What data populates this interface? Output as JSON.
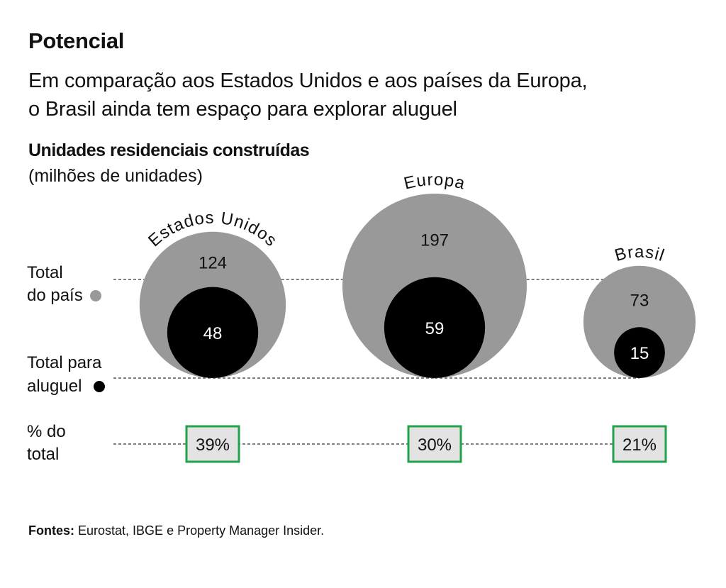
{
  "header": {
    "kicker": "Potencial",
    "headline_line1": "Em comparação aos Estados Unidos e aos países da Europa,",
    "headline_line2": "o Brasil ainda tem espaço para explorar aluguel"
  },
  "chart_data": {
    "type": "bubble",
    "title": "Unidades residenciais construídas",
    "subtitle": "(milhões de unidades)",
    "row_labels": {
      "total_pais": [
        "Total",
        "do país"
      ],
      "total_aluguel": [
        "Total para",
        "aluguel"
      ],
      "percent": [
        "% do",
        "total"
      ]
    },
    "categories": [
      "Estados Unidos",
      "Europa",
      "Brasil"
    ],
    "series": [
      {
        "key": "total_pais",
        "values": [
          124,
          197,
          73
        ],
        "color": "#999999"
      },
      {
        "key": "total_aluguel",
        "values": [
          48,
          59,
          15
        ],
        "color": "#000000"
      }
    ],
    "percent_labels": [
      "39%",
      "30%",
      "21%"
    ],
    "percent_box_color": "#1fa24a",
    "percent_box_fill": "#e3e3e3"
  },
  "footer": {
    "source_label": "Fontes:",
    "source_text": "Eurostat, IBGE e Property Manager Insider."
  }
}
